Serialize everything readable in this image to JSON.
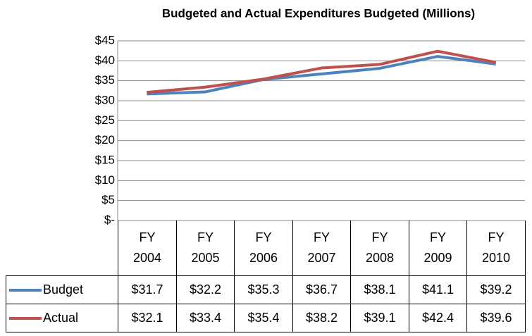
{
  "chart_data": {
    "type": "line",
    "title": "Budgeted and Actual Expenditures Budgeted (Millions)",
    "categories": [
      "FY 2004",
      "FY 2005",
      "FY 2006",
      "FY 2007",
      "FY 2008",
      "FY 2009",
      "FY 2010"
    ],
    "series": [
      {
        "name": "Budget",
        "color": "#4f81bd",
        "values": [
          31.7,
          32.2,
          35.3,
          36.7,
          38.1,
          41.1,
          39.2
        ],
        "value_labels": [
          "$31.7",
          "$32.2",
          "$35.3",
          "$36.7",
          "$38.1",
          "$41.1",
          "$39.2"
        ]
      },
      {
        "name": "Actual",
        "color": "#c0504d",
        "values": [
          32.1,
          33.4,
          35.4,
          38.2,
          39.1,
          42.4,
          39.6
        ],
        "value_labels": [
          "$32.1",
          "$33.4",
          "$35.4",
          "$38.2",
          "$39.1",
          "$42.4",
          "$39.6"
        ]
      }
    ],
    "ylim": [
      0,
      45
    ],
    "yticks": [
      {
        "value": 0,
        "label": "$-"
      },
      {
        "value": 5,
        "label": "$5"
      },
      {
        "value": 10,
        "label": "$10"
      },
      {
        "value": 15,
        "label": "$15"
      },
      {
        "value": 20,
        "label": "$20"
      },
      {
        "value": 25,
        "label": "$25"
      },
      {
        "value": 30,
        "label": "$30"
      },
      {
        "value": 35,
        "label": "$35"
      },
      {
        "value": 40,
        "label": "$40"
      },
      {
        "value": 45,
        "label": "$45"
      }
    ],
    "grid": true
  }
}
